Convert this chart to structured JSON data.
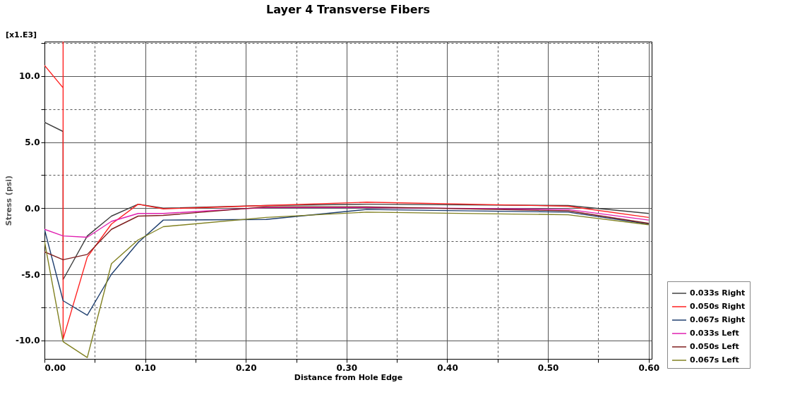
{
  "chart_data": {
    "type": "line",
    "title": "Layer 4 Transverse Fibers",
    "xlabel": "Distance from Hole Edge",
    "ylabel": "Stress (psi)",
    "annotations": [
      "[x1.E3]"
    ],
    "xlim": [
      0,
      0.603
    ],
    "ylim": [
      -11.4,
      12.6
    ],
    "xticks": [
      {
        "value": 0,
        "label": "0.00"
      },
      {
        "value": 0.05,
        "label": null
      },
      {
        "value": 0.1,
        "label": "0.10"
      },
      {
        "value": 0.15,
        "label": null
      },
      {
        "value": 0.2,
        "label": "0.20"
      },
      {
        "value": 0.25,
        "label": null
      },
      {
        "value": 0.3,
        "label": "0.30"
      },
      {
        "value": 0.35,
        "label": null
      },
      {
        "value": 0.4,
        "label": "0.40"
      },
      {
        "value": 0.45,
        "label": null
      },
      {
        "value": 0.5,
        "label": "0.50"
      },
      {
        "value": 0.55,
        "label": null
      },
      {
        "value": 0.6,
        "label": "0.60"
      }
    ],
    "yticks": [
      {
        "value": -10,
        "label": "-10.0"
      },
      {
        "value": -7.5,
        "label": null
      },
      {
        "value": -5,
        "label": "-5.0"
      },
      {
        "value": -2.5,
        "label": null
      },
      {
        "value": 0,
        "label": "0.0"
      },
      {
        "value": 2.5,
        "label": null
      },
      {
        "value": 5,
        "label": "5.0"
      },
      {
        "value": 7.5,
        "label": null
      },
      {
        "value": 10,
        "label": "10.0"
      },
      {
        "value": 12.5,
        "label": null
      }
    ],
    "grid": true,
    "legend": "bottom right",
    "marker": "none",
    "line_style": "solid",
    "series": [
      {
        "name": "0.033s Right",
        "color": "#404040",
        "x": [
          0,
          0.0185,
          0.0185,
          0.0425,
          0.0665,
          0.093,
          0.118,
          0.22,
          0.32,
          0.52,
          0.6
        ],
        "values": [
          6.5,
          5.8,
          -5.4,
          -2.1,
          -0.6,
          0.3,
          0.0,
          0.2,
          0.3,
          0.2,
          -0.4
        ]
      },
      {
        "name": "0.050s Right",
        "color": "#ff2020",
        "x": [
          0,
          0.0185,
          0.0185,
          0.0185,
          0.0425,
          0.0665,
          0.093,
          0.118,
          0.22,
          0.32,
          0.52,
          0.6
        ],
        "values": [
          10.8,
          9.1,
          12.6,
          -9.9,
          -3.7,
          -1.2,
          0.3,
          -0.05,
          0.2,
          0.45,
          0.15,
          -0.7
        ]
      },
      {
        "name": "0.067s Right",
        "color": "#1f3f6f",
        "x": [
          0,
          0.0185,
          0.0425,
          0.0665,
          0.093,
          0.118,
          0.22,
          0.32,
          0.52,
          0.6
        ],
        "values": [
          -1.6,
          -7.0,
          -8.1,
          -5.0,
          -2.6,
          -0.9,
          -0.85,
          -0.1,
          -0.3,
          -1.2
        ]
      },
      {
        "name": "0.033s Left",
        "color": "#e020b0",
        "x": [
          0,
          0.0185,
          0.0425,
          0.0665,
          0.093,
          0.118,
          0.22,
          0.32,
          0.52,
          0.6
        ],
        "values": [
          -1.6,
          -2.1,
          -2.2,
          -1.0,
          -0.4,
          -0.4,
          0.05,
          0.05,
          -0.1,
          -0.9
        ]
      },
      {
        "name": "0.050s Left",
        "color": "#7f1f1f",
        "x": [
          0,
          0.0185,
          0.0425,
          0.0665,
          0.093,
          0.118,
          0.22,
          0.32,
          0.52,
          0.6
        ],
        "values": [
          -3.3,
          -3.9,
          -3.5,
          -1.6,
          -0.6,
          -0.55,
          0.1,
          0.1,
          -0.2,
          -1.15
        ]
      },
      {
        "name": "0.067s Left",
        "color": "#808020",
        "x": [
          0,
          0.0185,
          0.0425,
          0.0665,
          0.093,
          0.118,
          0.22,
          0.32,
          0.52,
          0.6
        ],
        "values": [
          -2.5,
          -10.1,
          -11.3,
          -4.2,
          -2.4,
          -1.4,
          -0.7,
          -0.3,
          -0.5,
          -1.25
        ]
      }
    ]
  }
}
